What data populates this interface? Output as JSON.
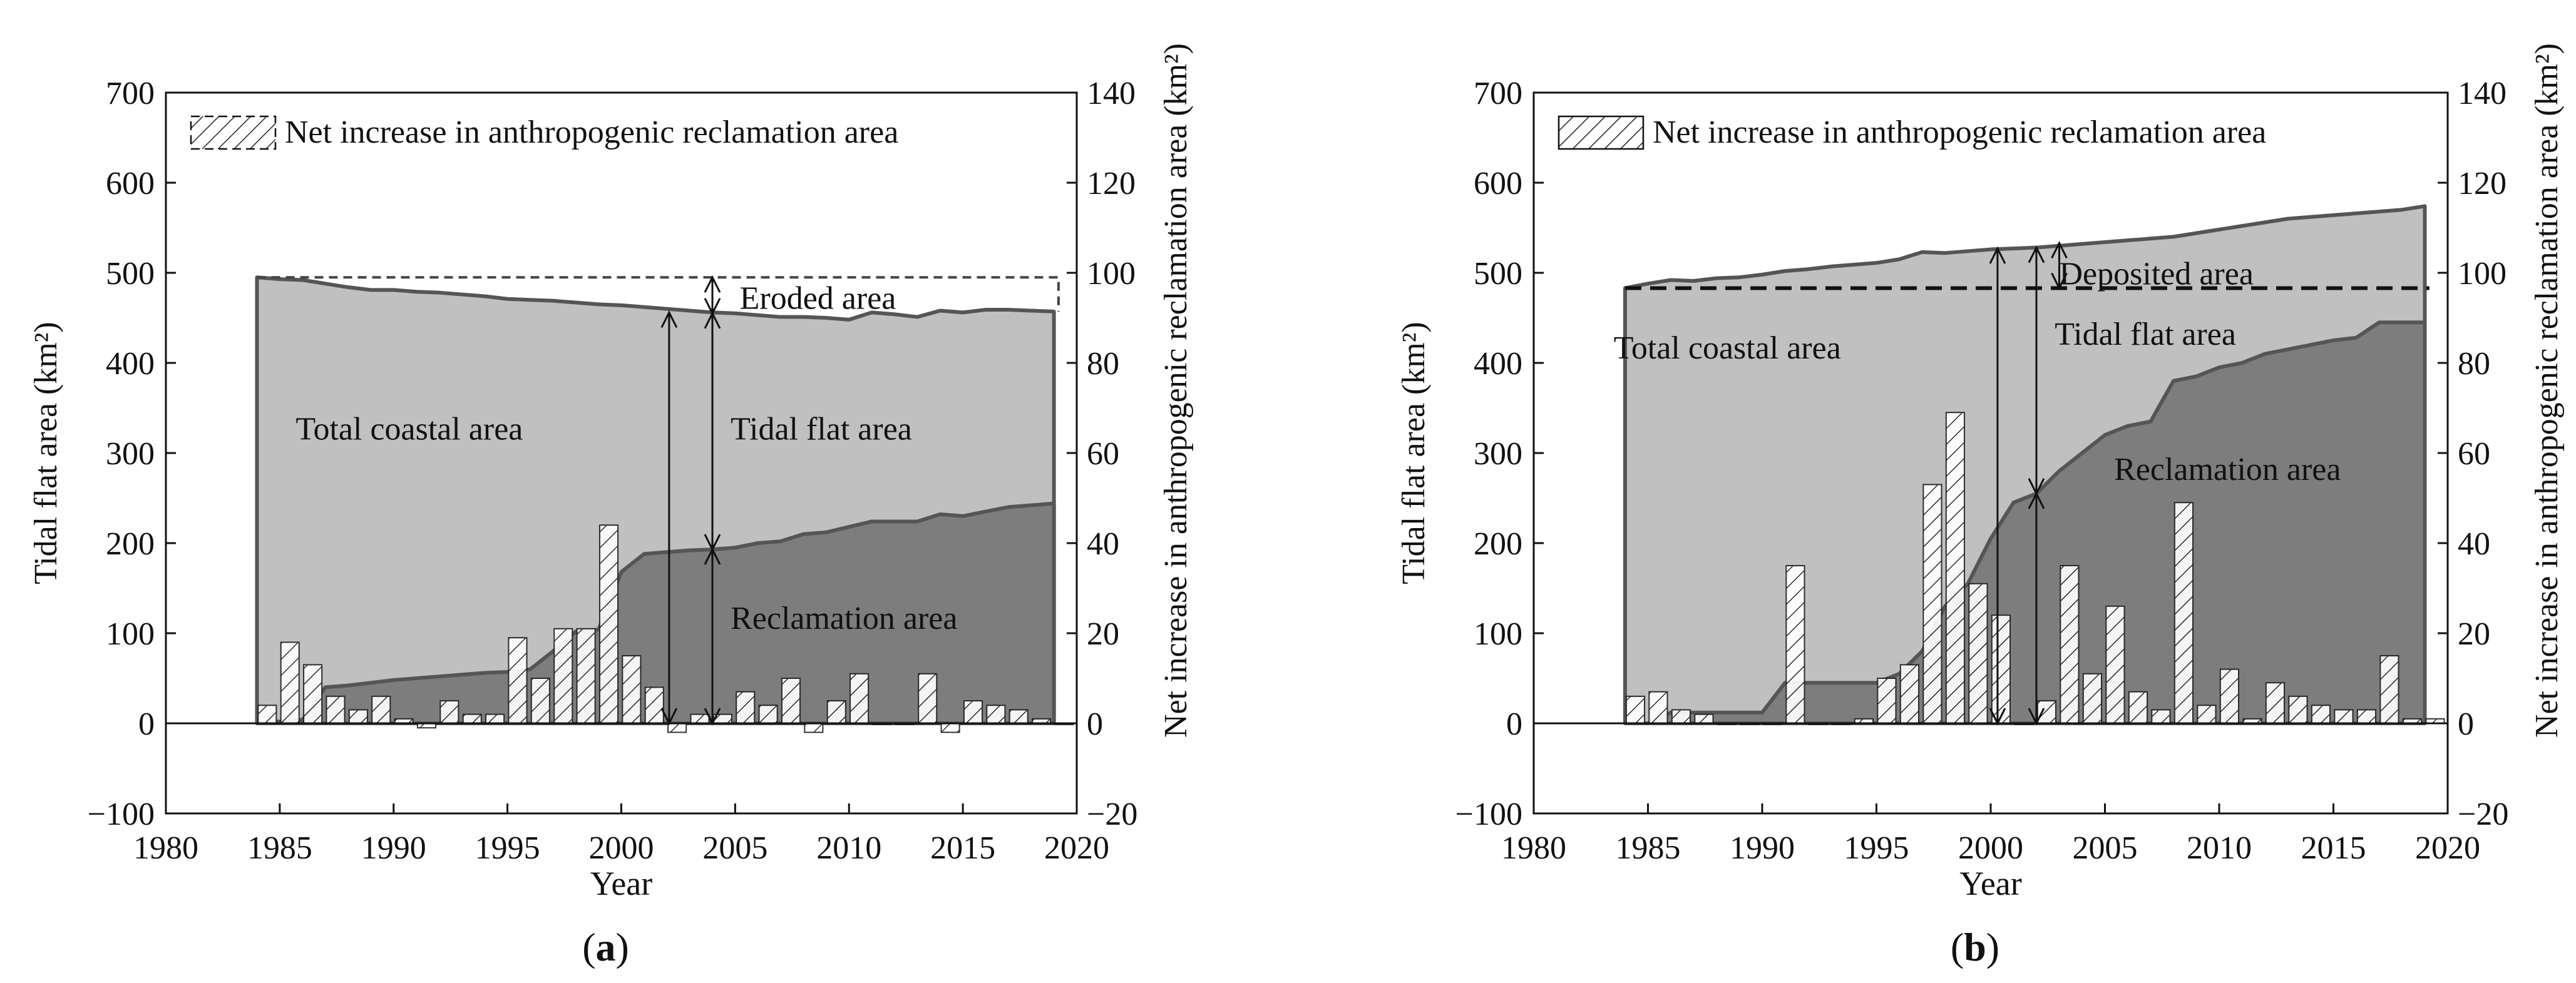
{
  "chart_data": [
    {
      "type": "area",
      "panel_label": "a",
      "xlabel": "Year",
      "ylabel_left": "Tidal flat area (km²)",
      "ylabel_right": "Net increase in anthropogenic reclamation area (km²)",
      "xlim": [
        1980,
        2020
      ],
      "ylim_left": [
        -100,
        700
      ],
      "ylim_right": [
        -20,
        140
      ],
      "xticks": [
        "1980",
        "1985",
        "1990",
        "1995",
        "2000",
        "2005",
        "2010",
        "2015",
        "2020"
      ],
      "yticks_left": [
        "−100",
        "0",
        "100",
        "200",
        "300",
        "400",
        "500",
        "600",
        "700"
      ],
      "yticks_right": [
        "−20",
        "0",
        "20",
        "40",
        "60",
        "80",
        "100",
        "120",
        "140"
      ],
      "legend": "Net increase in anthropogenic reclamation area",
      "annotations": {
        "total": "Total coastal area",
        "tidal": "Tidal flat area",
        "reclamation": "Reclamation area",
        "change": "Eroded area"
      },
      "baseline_total": 495,
      "years": [
        1984,
        1985,
        1986,
        1987,
        1988,
        1989,
        1990,
        1991,
        1992,
        1993,
        1994,
        1995,
        1996,
        1997,
        1998,
        1999,
        2000,
        2001,
        2002,
        2003,
        2004,
        2005,
        2006,
        2007,
        2008,
        2009,
        2010,
        2011,
        2012,
        2013,
        2014,
        2015,
        2016,
        2017,
        2018,
        2019
      ],
      "total_area": [
        495,
        493,
        492,
        488,
        484,
        481,
        481,
        479,
        478,
        476,
        474,
        471,
        470,
        469,
        467,
        465,
        464,
        462,
        460,
        458,
        456,
        455,
        453,
        451,
        451,
        450,
        448,
        456,
        454,
        451,
        458,
        456,
        459,
        459,
        458,
        457
      ],
      "reclamation_area": [
        0,
        2,
        4,
        40,
        42,
        45,
        48,
        50,
        52,
        54,
        56,
        57,
        60,
        80,
        102,
        104,
        168,
        188,
        190,
        192,
        193,
        195,
        200,
        202,
        210,
        212,
        218,
        224,
        224,
        224,
        232,
        230,
        235,
        240,
        242,
        244
      ],
      "net_increase": [
        4,
        18,
        13,
        6,
        3,
        6,
        1,
        -1,
        5,
        2,
        2,
        19,
        10,
        21,
        21,
        44,
        15,
        8,
        -2,
        2,
        2,
        7,
        4,
        10,
        -2,
        5,
        11,
        0,
        0,
        11,
        -2,
        5,
        4,
        3,
        1,
        0
      ]
    },
    {
      "type": "area",
      "panel_label": "b",
      "xlabel": "Year",
      "ylabel_left": "Tidal flat area (km²)",
      "ylabel_right": "Net increase in anthropogenic reclamation area (km²)",
      "xlim": [
        1980,
        2020
      ],
      "ylim_left": [
        -100,
        700
      ],
      "ylim_right": [
        -20,
        140
      ],
      "xticks": [
        "1980",
        "1985",
        "1990",
        "1995",
        "2000",
        "2005",
        "2010",
        "2015",
        "2020"
      ],
      "yticks_left": [
        "−100",
        "0",
        "100",
        "200",
        "300",
        "400",
        "500",
        "600",
        "700"
      ],
      "yticks_right": [
        "−20",
        "0",
        "20",
        "40",
        "60",
        "80",
        "100",
        "120",
        "140"
      ],
      "legend": "Net increase in anthropogenic reclamation area",
      "annotations": {
        "total": "Total coastal area",
        "tidal": "Tidal flat area",
        "reclamation": "Reclamation area",
        "change": "Deposited area"
      },
      "baseline_total": 483,
      "years": [
        1984,
        1985,
        1986,
        1987,
        1988,
        1989,
        1990,
        1991,
        1992,
        1993,
        1994,
        1995,
        1996,
        1997,
        1998,
        1999,
        2000,
        2001,
        2002,
        2003,
        2004,
        2005,
        2006,
        2007,
        2008,
        2009,
        2010,
        2011,
        2012,
        2013,
        2014,
        2015,
        2016,
        2017,
        2018,
        2019
      ],
      "total_area": [
        483,
        488,
        492,
        491,
        494,
        495,
        498,
        502,
        504,
        507,
        509,
        511,
        515,
        523,
        522,
        524,
        526,
        527,
        528,
        530,
        532,
        534,
        536,
        538,
        540,
        544,
        548,
        552,
        556,
        560,
        562,
        564,
        566,
        568,
        570,
        574
      ],
      "reclamation_area": [
        0,
        0,
        12,
        12,
        12,
        12,
        12,
        45,
        45,
        45,
        45,
        45,
        55,
        80,
        130,
        155,
        205,
        245,
        255,
        280,
        300,
        320,
        330,
        335,
        380,
        385,
        395,
        400,
        410,
        415,
        420,
        425,
        428,
        445,
        445,
        445
      ],
      "net_increase": [
        6,
        7,
        3,
        2,
        0,
        0,
        0,
        35,
        0,
        0,
        1,
        10,
        13,
        53,
        69,
        31,
        24,
        0,
        5,
        35,
        11,
        26,
        7,
        3,
        49,
        4,
        12,
        1,
        9,
        6,
        4,
        3,
        3,
        15,
        1,
        1
      ]
    }
  ]
}
